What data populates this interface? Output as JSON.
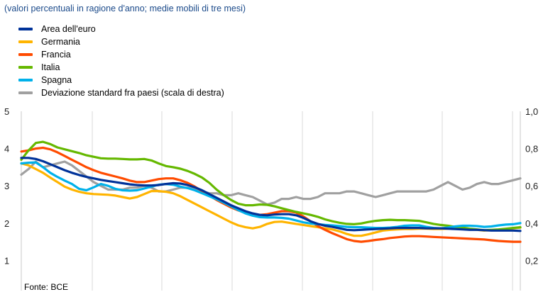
{
  "subtitle": "(valori percentuali in ragione d'anno; medie mobili di tre mesi)",
  "source": "Fonte: BCE",
  "chart_data": {
    "type": "line",
    "subtitle": "(valori percentuali in ragione d'anno; medie mobili di tre mesi)",
    "legend_position": "top-left",
    "grid": "vertical",
    "y_left": {
      "ylim": [
        0,
        5
      ],
      "ticks": [
        "1",
        "2",
        "3",
        "4",
        "5"
      ],
      "tick_values": [
        1,
        2,
        3,
        4,
        5
      ]
    },
    "y_right": {
      "ylim": [
        0,
        1.0
      ],
      "ticks": [
        "0,2",
        "0,4",
        "0,6",
        "0,8",
        "1,0"
      ],
      "tick_values": [
        0.2,
        0.4,
        0.6,
        0.8,
        1.0
      ]
    },
    "series": [
      {
        "name": "Area dell'euro",
        "color": "#003299",
        "axis": "left",
        "values": [
          3.75,
          3.75,
          3.72,
          3.66,
          3.58,
          3.5,
          3.42,
          3.35,
          3.29,
          3.24,
          3.2,
          3.16,
          3.13,
          3.1,
          3.07,
          3.04,
          3.02,
          3.01,
          3.01,
          3.02,
          3.05,
          3.07,
          3.06,
          3.02,
          2.96,
          2.88,
          2.78,
          2.68,
          2.58,
          2.48,
          2.4,
          2.32,
          2.26,
          2.22,
          2.21,
          2.23,
          2.24,
          2.24,
          2.21,
          2.14,
          2.05,
          1.98,
          1.93,
          1.9,
          1.86,
          1.82,
          1.81,
          1.82,
          1.83,
          1.84,
          1.85,
          1.86,
          1.87,
          1.87,
          1.87,
          1.87,
          1.86,
          1.86,
          1.86,
          1.85,
          1.84,
          1.83,
          1.82,
          1.82,
          1.81,
          1.8,
          1.8,
          1.8,
          1.8,
          1.79
        ]
      },
      {
        "name": "Germania",
        "color": "#ffb400",
        "axis": "left",
        "values": [
          3.6,
          3.55,
          3.45,
          3.35,
          3.22,
          3.1,
          2.98,
          2.9,
          2.84,
          2.8,
          2.78,
          2.77,
          2.76,
          2.74,
          2.7,
          2.66,
          2.7,
          2.78,
          2.86,
          2.86,
          2.84,
          2.8,
          2.72,
          2.62,
          2.52,
          2.42,
          2.32,
          2.22,
          2.12,
          2.02,
          1.94,
          1.89,
          1.86,
          1.9,
          1.98,
          2.03,
          2.04,
          2.01,
          1.98,
          1.95,
          1.92,
          1.89,
          1.86,
          1.83,
          1.78,
          1.71,
          1.66,
          1.66,
          1.7,
          1.75,
          1.8,
          1.82,
          1.83,
          1.84,
          1.84,
          1.85,
          1.85,
          1.84,
          1.84,
          1.85,
          1.86,
          1.86,
          1.84,
          1.82,
          1.8,
          1.81,
          1.82,
          1.84,
          1.86,
          1.88
        ]
      },
      {
        "name": "Francia",
        "color": "#ff4b00",
        "axis": "left",
        "values": [
          3.92,
          3.95,
          4.0,
          4.02,
          3.98,
          3.9,
          3.8,
          3.7,
          3.6,
          3.5,
          3.42,
          3.35,
          3.3,
          3.25,
          3.2,
          3.14,
          3.1,
          3.1,
          3.14,
          3.18,
          3.2,
          3.2,
          3.15,
          3.08,
          2.98,
          2.86,
          2.74,
          2.62,
          2.52,
          2.42,
          2.34,
          2.28,
          2.23,
          2.22,
          2.24,
          2.28,
          2.32,
          2.32,
          2.28,
          2.18,
          2.05,
          1.92,
          1.82,
          1.73,
          1.65,
          1.57,
          1.52,
          1.5,
          1.52,
          1.55,
          1.57,
          1.6,
          1.62,
          1.64,
          1.65,
          1.65,
          1.64,
          1.63,
          1.62,
          1.61,
          1.6,
          1.59,
          1.58,
          1.57,
          1.56,
          1.54,
          1.52,
          1.51,
          1.5,
          1.5
        ]
      },
      {
        "name": "Italia",
        "color": "#65b800",
        "axis": "left",
        "values": [
          3.7,
          3.95,
          4.15,
          4.18,
          4.12,
          4.03,
          3.98,
          3.93,
          3.88,
          3.82,
          3.78,
          3.74,
          3.73,
          3.73,
          3.72,
          3.71,
          3.71,
          3.72,
          3.68,
          3.6,
          3.53,
          3.5,
          3.46,
          3.4,
          3.32,
          3.22,
          3.08,
          2.9,
          2.75,
          2.62,
          2.52,
          2.48,
          2.48,
          2.5,
          2.49,
          2.45,
          2.4,
          2.35,
          2.3,
          2.26,
          2.22,
          2.17,
          2.1,
          2.05,
          2.01,
          1.98,
          1.97,
          1.99,
          2.03,
          2.06,
          2.08,
          2.09,
          2.08,
          2.08,
          2.07,
          2.06,
          2.02,
          1.98,
          1.95,
          1.93,
          1.9,
          1.88,
          1.85,
          1.83,
          1.81,
          1.82,
          1.83,
          1.85,
          1.87,
          1.89
        ]
      },
      {
        "name": "Spagna",
        "color": "#00b1ea",
        "axis": "left",
        "values": [
          3.6,
          3.62,
          3.63,
          3.5,
          3.35,
          3.24,
          3.14,
          3.05,
          2.92,
          2.88,
          2.96,
          3.05,
          3.0,
          2.92,
          2.88,
          2.87,
          2.88,
          2.93,
          2.98,
          3.03,
          3.05,
          3.03,
          2.98,
          2.94,
          2.88,
          2.8,
          2.72,
          2.64,
          2.55,
          2.45,
          2.35,
          2.26,
          2.2,
          2.16,
          2.15,
          2.15,
          2.14,
          2.12,
          2.07,
          2.02,
          1.99,
          1.97,
          1.95,
          1.94,
          1.92,
          1.9,
          1.89,
          1.89,
          1.88,
          1.87,
          1.87,
          1.88,
          1.9,
          1.93,
          1.94,
          1.94,
          1.9,
          1.87,
          1.86,
          1.88,
          1.91,
          1.93,
          1.93,
          1.92,
          1.9,
          1.91,
          1.94,
          1.96,
          1.97,
          2.0
        ]
      },
      {
        "name": "Deviazione standard fra paesi (scala di destra)",
        "color": "#a0a0a0",
        "axis": "right",
        "values": [
          0.66,
          0.69,
          0.73,
          0.7,
          0.71,
          0.72,
          0.73,
          0.71,
          0.68,
          0.65,
          0.62,
          0.6,
          0.58,
          0.58,
          0.58,
          0.59,
          0.59,
          0.6,
          0.59,
          0.57,
          0.57,
          0.58,
          0.59,
          0.59,
          0.58,
          0.57,
          0.56,
          0.56,
          0.55,
          0.55,
          0.56,
          0.55,
          0.54,
          0.52,
          0.5,
          0.51,
          0.53,
          0.53,
          0.54,
          0.53,
          0.53,
          0.54,
          0.56,
          0.56,
          0.56,
          0.57,
          0.57,
          0.56,
          0.55,
          0.54,
          0.55,
          0.56,
          0.57,
          0.57,
          0.57,
          0.57,
          0.57,
          0.58,
          0.6,
          0.62,
          0.6,
          0.58,
          0.59,
          0.61,
          0.62,
          0.61,
          0.61,
          0.62,
          0.63,
          0.64
        ]
      }
    ]
  }
}
